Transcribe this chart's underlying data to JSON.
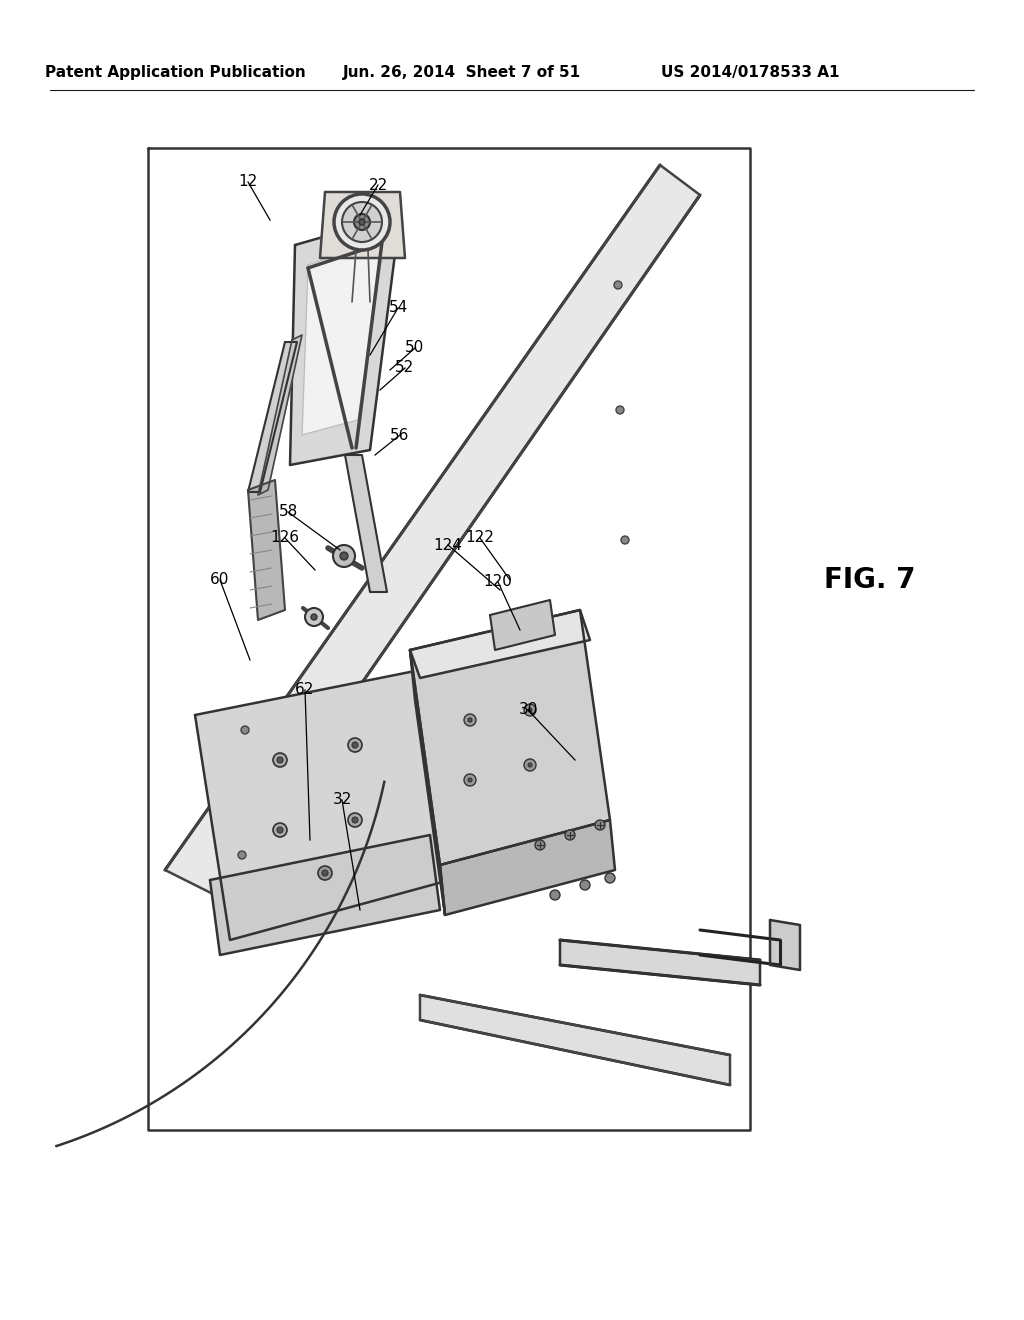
{
  "background_color": "#ffffff",
  "header_text_left": "Patent Application Publication",
  "header_text_mid": "Jun. 26, 2014  Sheet 7 of 51",
  "header_text_right": "US 2014/0178533 A1",
  "fig_label": "FIG. 7",
  "line_color": "#1a1a1a",
  "light_gray": "#aaaaaa",
  "mid_gray": "#888888",
  "dark_line": "#222222",
  "labels_data": {
    "12": [
      248,
      182,
      270,
      220
    ],
    "22": [
      378,
      185,
      360,
      215
    ],
    "54": [
      398,
      308,
      370,
      355
    ],
    "50": [
      415,
      348,
      390,
      370
    ],
    "52": [
      405,
      368,
      380,
      390
    ],
    "56": [
      400,
      435,
      375,
      455
    ],
    "58": [
      288,
      512,
      340,
      550
    ],
    "126": [
      285,
      538,
      315,
      570
    ],
    "60": [
      220,
      580,
      250,
      660
    ],
    "62": [
      305,
      690,
      310,
      840
    ],
    "124": [
      448,
      545,
      500,
      590
    ],
    "122": [
      480,
      538,
      510,
      580
    ],
    "120": [
      498,
      582,
      520,
      630
    ],
    "30": [
      528,
      710,
      575,
      760
    ],
    "32": [
      342,
      800,
      360,
      910
    ]
  }
}
